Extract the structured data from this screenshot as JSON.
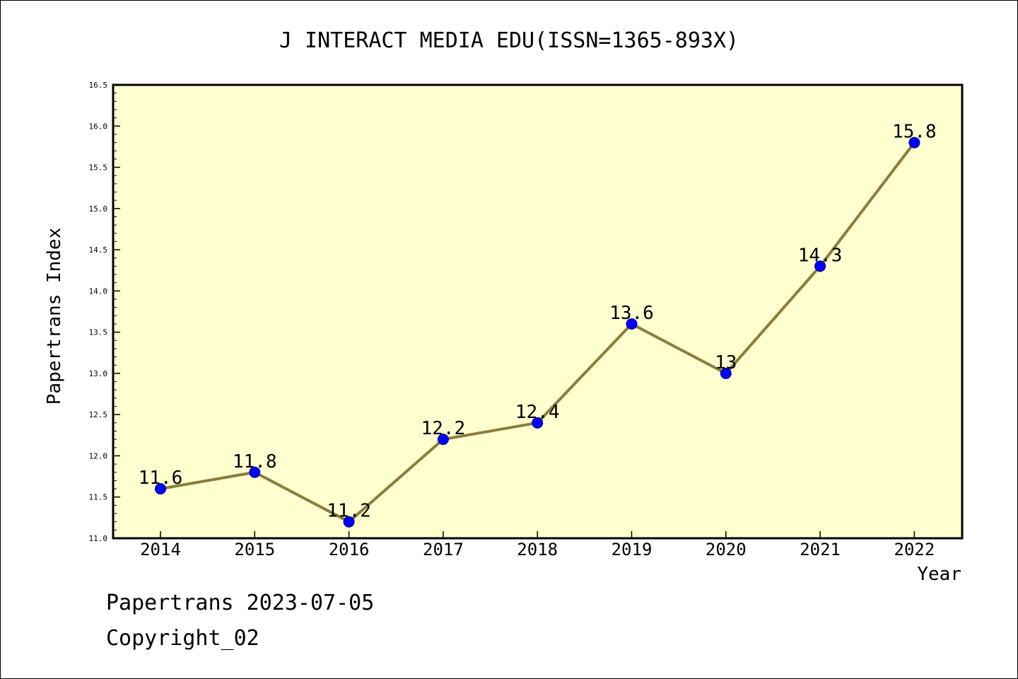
{
  "chart_data": {
    "type": "line",
    "title": "J INTERACT MEDIA EDU(ISSN=1365-893X)",
    "xlabel": "Year",
    "ylabel": "Papertrans Index",
    "categories": [
      "2014",
      "2015",
      "2016",
      "2017",
      "2018",
      "2019",
      "2020",
      "2021",
      "2022"
    ],
    "values": [
      11.6,
      11.8,
      11.2,
      12.2,
      12.4,
      13.6,
      13.0,
      14.3,
      15.8
    ],
    "data_labels": [
      "11.6",
      "11.8",
      "11.2",
      "12.2",
      "12.4",
      "13.6",
      "13",
      "14.3",
      "15.8"
    ],
    "ylim": [
      11.0,
      16.5
    ],
    "yticks": [
      "11.0",
      "11.5",
      "12.0",
      "12.5",
      "13.0",
      "13.5",
      "14.0",
      "14.5",
      "15.0",
      "15.5",
      "16.0",
      "16.5"
    ],
    "grid": false,
    "colors": {
      "line": "#8b7d3a",
      "marker": "#0000ff",
      "plot_background": "#ffffd0"
    }
  },
  "footer": {
    "line1": "Papertrans 2023-07-05",
    "line2": "Copyright_02"
  }
}
